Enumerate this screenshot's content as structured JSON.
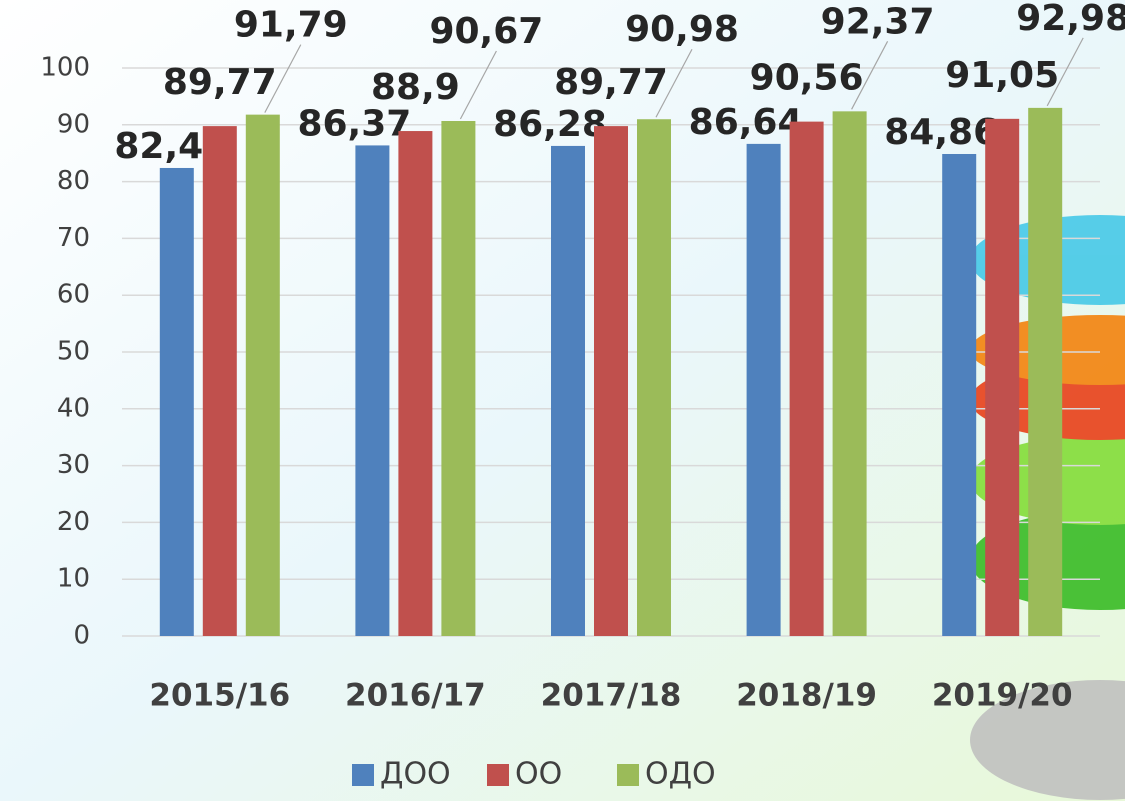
{
  "chart_data": {
    "type": "bar",
    "categories": [
      "2015/16",
      "2016/17",
      "2017/18",
      "2018/19",
      "2019/20"
    ],
    "series": [
      {
        "name": "ДОО",
        "color": "#4f81bd",
        "values": [
          82.4,
          86.37,
          86.28,
          86.64,
          84.86
        ],
        "value_labels": [
          "82,4",
          "86,37",
          "86,28",
          "86,64",
          "84,86"
        ]
      },
      {
        "name": "ОО",
        "color": "#c0504d",
        "values": [
          89.77,
          88.9,
          89.77,
          90.56,
          91.05
        ],
        "value_labels": [
          "89,77",
          "88,9",
          "89,77",
          "90,56",
          "91,05"
        ]
      },
      {
        "name": "ОДО",
        "color": "#9bbb59",
        "values": [
          91.79,
          90.67,
          90.98,
          92.37,
          92.98
        ],
        "value_labels": [
          "91,79",
          "90,67",
          "90,98",
          "92,37",
          "92,98"
        ]
      }
    ],
    "ylim": [
      0,
      100
    ],
    "yticks": [
      0,
      10,
      20,
      30,
      40,
      50,
      60,
      70,
      80,
      90,
      100
    ],
    "grid": true,
    "legend": "bottom"
  }
}
